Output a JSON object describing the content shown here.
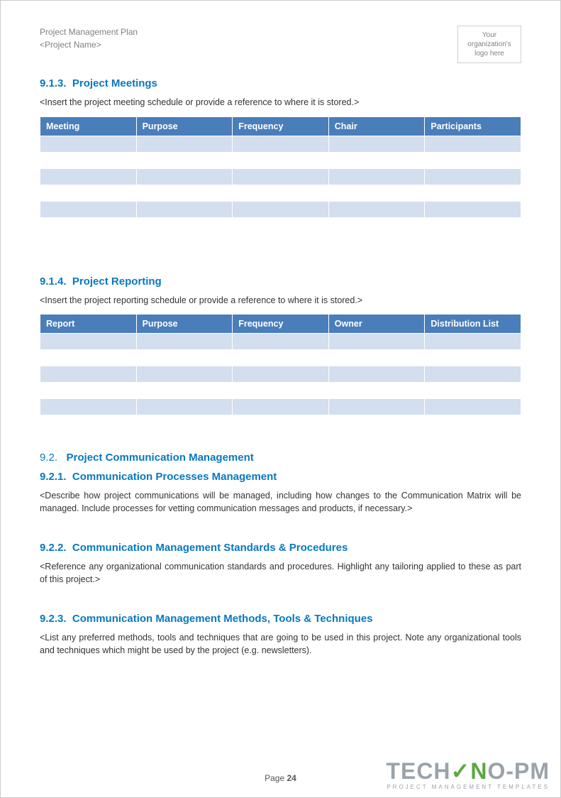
{
  "header": {
    "title1": "Project Management Plan",
    "title2": "<Project Name>",
    "logo_line1": "Your",
    "logo_line2": "organization's",
    "logo_line3": "logo here"
  },
  "sections": {
    "s913": {
      "num": "9.1.3.",
      "title": "Project Meetings",
      "desc": "<Insert the project meeting schedule or provide a reference to where it is stored.>",
      "columns": [
        "Meeting",
        "Purpose",
        "Frequency",
        "Chair",
        "Participants"
      ],
      "row_count": 6
    },
    "s914": {
      "num": "9.1.4.",
      "title": "Project Reporting",
      "desc": "<Insert the project reporting schedule or provide a reference to where it is stored.>",
      "columns": [
        "Report",
        "Purpose",
        "Frequency",
        "Owner",
        "Distribution List"
      ],
      "row_count": 6
    },
    "s92": {
      "num": "9.2.",
      "title": "Project Communication Management"
    },
    "s921": {
      "num": "9.2.1.",
      "title": "Communication Processes Management",
      "desc": "<Describe how project communications will be managed, including how changes to the Communication Matrix will be managed. Include processes for vetting communication messages and products, if necessary.>"
    },
    "s922": {
      "num": "9.2.2.",
      "title": "Communication Management Standards & Procedures",
      "desc": "<Reference any organizational communication standards and procedures. Highlight any tailoring applied to these as part of this project.>"
    },
    "s923": {
      "num": "9.2.3.",
      "title": "Communication Management Methods, Tools & Techniques",
      "desc": "<List any preferred methods, tools and techniques that are going to be used in this project. Note any organizational tools and techniques which might be used by the project (e.g. newsletters)."
    }
  },
  "styles": {
    "heading_color": "#0878c0",
    "table_header_bg": "#4a7ebb",
    "table_header_fg": "#ffffff",
    "table_row_alt_bg": "#d3deef",
    "table_row_plain_bg": "#ffffff",
    "body_text_color": "#333333",
    "header_text_color": "#808080"
  },
  "footer": {
    "page_label": "Page",
    "page_number": "24"
  },
  "watermark": {
    "brand_pre": "TEC",
    "brand_h": "H",
    "brand_check": "✓",
    "brand_n": "N",
    "brand_post": "O-PM",
    "sub": "PROJECT MANAGEMENT TEMPLATES"
  }
}
